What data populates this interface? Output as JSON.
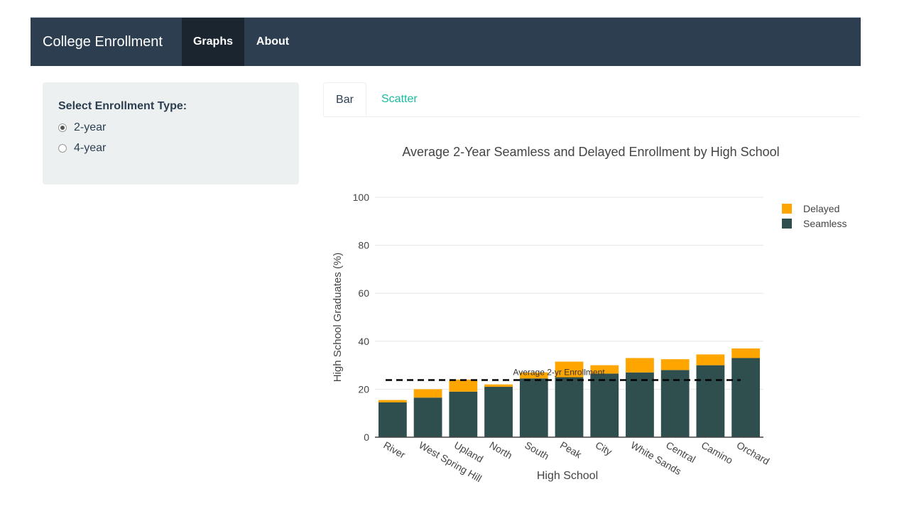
{
  "navbar": {
    "brand": "College Enrollment",
    "items": [
      {
        "label": "Graphs",
        "active": true
      },
      {
        "label": "About",
        "active": false
      }
    ]
  },
  "sidebar": {
    "label": "Select Enrollment Type:",
    "options": [
      {
        "label": "2-year",
        "checked": true
      },
      {
        "label": "4-year",
        "checked": false
      }
    ]
  },
  "tabs": [
    {
      "label": "Bar",
      "active": true
    },
    {
      "label": "Scatter",
      "active": false
    }
  ],
  "colors": {
    "navbar": "#2c3e50",
    "navbar_active": "#1a252f",
    "tab_link": "#18bc9c",
    "seamless": "#2f4f4f",
    "delayed": "#ffa500"
  },
  "chart_data": {
    "type": "bar",
    "stacked": true,
    "title": "Average 2-Year Seamless and Delayed Enrollment by High School",
    "xlabel": "High School",
    "ylabel": "High School Graduates (%)",
    "ylim": [
      0,
      100
    ],
    "yticks": [
      0,
      20,
      40,
      60,
      80,
      100
    ],
    "grid": true,
    "legend_position": "top-right",
    "categories": [
      "River",
      "West Spring Hill",
      "Upland",
      "North",
      "South",
      "Peak",
      "City",
      "White Sands",
      "Central",
      "Camino",
      "Orchard"
    ],
    "series": [
      {
        "name": "Seamless",
        "color": "#2f4f4f",
        "values": [
          14.5,
          16.5,
          19,
          21,
          24.5,
          25,
          26.5,
          27,
          28,
          30,
          33
        ]
      },
      {
        "name": "Delayed",
        "color": "#ffa500",
        "values": [
          1,
          3.5,
          5,
          1,
          2.5,
          6.5,
          3.5,
          6,
          4.5,
          4.5,
          4
        ]
      }
    ],
    "reference_line": {
      "label": "Average 2-yr Enrollment",
      "value": 23.8
    }
  }
}
